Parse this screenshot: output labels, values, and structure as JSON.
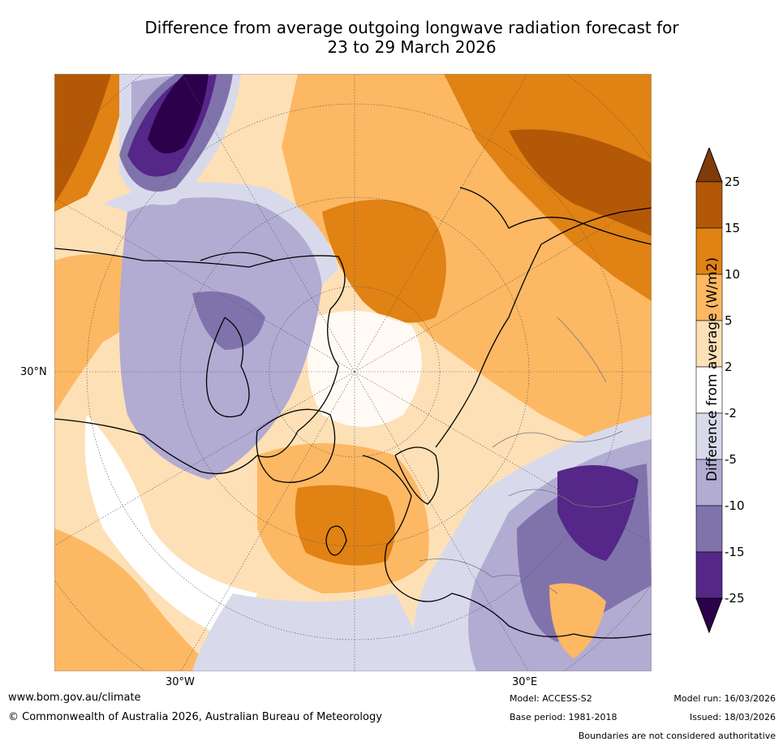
{
  "title_line1": "Difference from average outgoing longwave radiation forecast for",
  "title_line2": "23 to 29 March 2026",
  "map": {
    "lat_label": "30°N",
    "lon_labels": [
      "30°W",
      "30°E"
    ]
  },
  "legend": {
    "title": "Difference from average (W/m2)",
    "ticks": [
      "25",
      "15",
      "10",
      "5",
      "2",
      "-2",
      "-5",
      "-10",
      "-15",
      "-25"
    ],
    "colors": {
      "top_arrow": "#7f3b08",
      "15_25": "#b35806",
      "10_15": "#e08214",
      "5_10": "#fdb863",
      "2_5": "#fee0b6",
      "neutral": "#ffffff",
      "m5_m2": "#d8daeb",
      "m10_m5": "#b2abd2",
      "m15_m10": "#8073ac",
      "m25_m15": "#542788",
      "bottom_arrow": "#2d004b"
    }
  },
  "footer": {
    "website": "www.bom.gov.au/climate",
    "copyright": "© Commonwealth of Australia 2026, Australian Bureau of Meteorology",
    "model": "Model: ACCESS-S2",
    "base_period": "Base period: 1981-2018",
    "model_run": "Model run: 16/03/2026",
    "issued": "Issued: 18/03/2026",
    "disclaimer": "Boundaries are not considered authoritative"
  }
}
